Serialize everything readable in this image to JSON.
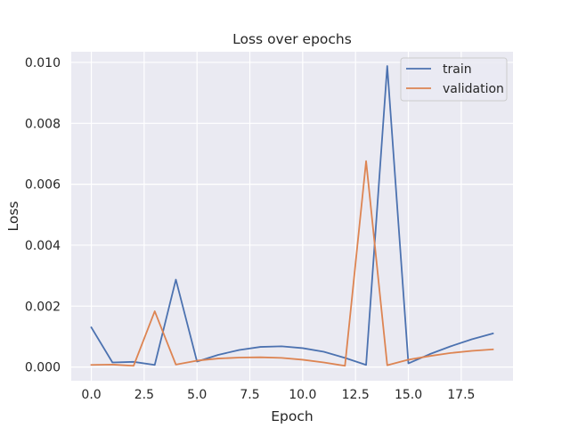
{
  "chart_data": {
    "type": "line",
    "title": "Loss over epochs",
    "xlabel": "Epoch",
    "ylabel": "Loss",
    "x": [
      0,
      1,
      2,
      3,
      4,
      5,
      6,
      7,
      8,
      9,
      10,
      11,
      12,
      13,
      14,
      15,
      16,
      17,
      18,
      19
    ],
    "xlim": [
      -0.95,
      19.95
    ],
    "ylim": [
      -0.00045,
      0.01035
    ],
    "xticks": [
      0.0,
      2.5,
      5.0,
      7.5,
      10.0,
      12.5,
      15.0,
      17.5
    ],
    "xtick_labels": [
      "0.0",
      "2.5",
      "5.0",
      "7.5",
      "10.0",
      "12.5",
      "15.0",
      "17.5"
    ],
    "yticks": [
      0.0,
      0.002,
      0.004,
      0.006,
      0.008,
      0.01
    ],
    "ytick_labels": [
      "0.000",
      "0.002",
      "0.004",
      "0.006",
      "0.008",
      "0.010"
    ],
    "grid": true,
    "legend_position": "top-right",
    "series": [
      {
        "name": "train",
        "color": "#4c72b0",
        "values": [
          0.0013,
          0.00015,
          0.00017,
          7e-05,
          0.00287,
          0.00018,
          0.0004,
          0.00056,
          0.00066,
          0.00068,
          0.00062,
          0.0005,
          0.0003,
          7e-05,
          0.00988,
          0.00012,
          0.00042,
          0.00068,
          0.00091,
          0.0011
        ]
      },
      {
        "name": "validation",
        "color": "#dd8452",
        "values": [
          7e-05,
          8e-05,
          4e-05,
          0.00183,
          8e-05,
          0.00021,
          0.00028,
          0.00031,
          0.00032,
          0.0003,
          0.00024,
          0.00015,
          4e-05,
          0.00676,
          6e-05,
          0.00024,
          0.00036,
          0.00046,
          0.00053,
          0.00058
        ]
      }
    ]
  }
}
